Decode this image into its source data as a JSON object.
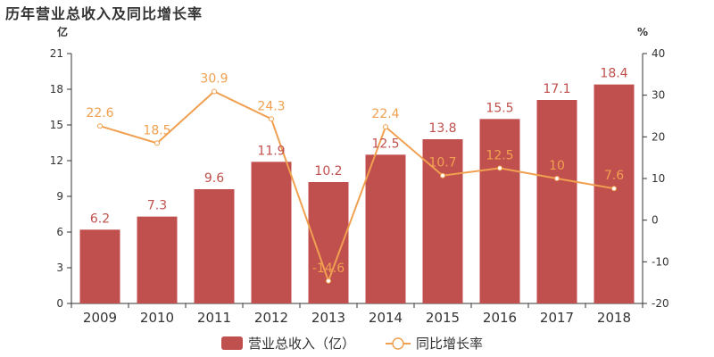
{
  "chart_data": {
    "type": "bar",
    "title": "历年营业总收入及同比增长率",
    "categories": [
      "2009",
      "2010",
      "2011",
      "2012",
      "2013",
      "2014",
      "2015",
      "2016",
      "2017",
      "2018"
    ],
    "series": [
      {
        "name": "营业总收入（亿）",
        "type": "bar",
        "axis": "left",
        "color": "#c0504d",
        "values": [
          6.2,
          7.3,
          9.6,
          11.9,
          10.2,
          12.5,
          13.8,
          15.5,
          17.1,
          18.4
        ],
        "labels": [
          "6.2",
          "7.3",
          "9.6",
          "11.9",
          "10.2",
          "12.5",
          "13.8",
          "15.5",
          "17.1",
          "18.4"
        ]
      },
      {
        "name": "同比增长率",
        "type": "line",
        "axis": "right",
        "color": "#f0a050",
        "values": [
          22.6,
          18.5,
          30.9,
          24.3,
          -14.6,
          22.4,
          10.7,
          12.5,
          10,
          7.6
        ],
        "labels": [
          "22.6",
          "18.5",
          "30.9",
          "24.3",
          "-14.6",
          "22.4",
          "10.7",
          "12.5",
          "10",
          "7.6"
        ]
      }
    ],
    "y_left": {
      "unit": "亿",
      "ylim": [
        0,
        21
      ],
      "ticks": [
        0,
        3,
        6,
        9,
        12,
        15,
        18,
        21
      ]
    },
    "y_right": {
      "unit": "%",
      "ylim": [
        -20,
        40
      ],
      "ticks": [
        -20,
        -10,
        0,
        10,
        20,
        30,
        40
      ]
    },
    "legend_position": "bottom-center",
    "grid": false
  }
}
